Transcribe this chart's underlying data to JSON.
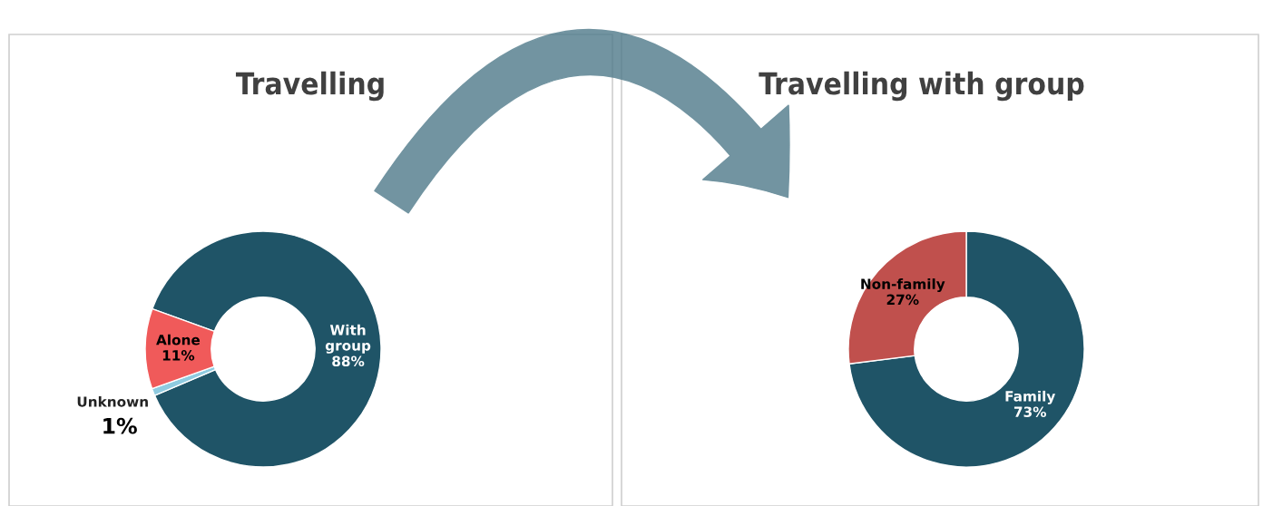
{
  "chart_data": [
    {
      "type": "donut",
      "title": "Travelling",
      "categories": [
        "With\ngroup",
        "Unknown",
        "Alone"
      ],
      "values": [
        88,
        1,
        11
      ],
      "colors": [
        "#1f5467",
        "#8fcbe0",
        "#f05a5a"
      ],
      "value_labels": [
        "88%",
        "1%",
        "11%"
      ]
    },
    {
      "type": "donut",
      "title": "Travelling with group",
      "categories": [
        "Family",
        "Non-family"
      ],
      "values": [
        73,
        27
      ],
      "colors": [
        "#1f5467",
        "#c0504d"
      ],
      "value_labels": [
        "73%",
        "27%"
      ]
    }
  ]
}
